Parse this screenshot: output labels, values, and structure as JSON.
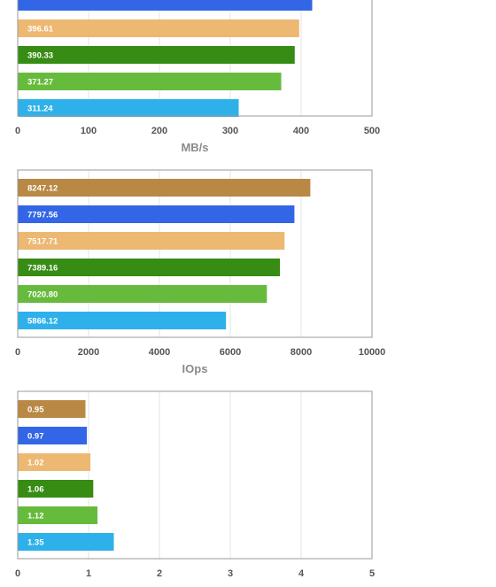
{
  "chart_data": [
    {
      "type": "bar",
      "orientation": "horizontal",
      "xlabel": "MB/s",
      "xlim": [
        0,
        500
      ],
      "xticks": [
        "0",
        "100",
        "200",
        "300",
        "400",
        "500"
      ],
      "grid": true,
      "bars": [
        {
          "value": 415,
          "label": "",
          "color": "#3366e6",
          "partial": true
        },
        {
          "value": 396.61,
          "label": "396.61",
          "color": "#edb872"
        },
        {
          "value": 390.33,
          "label": "390.33",
          "color": "#378c14"
        },
        {
          "value": 371.27,
          "label": "371.27",
          "color": "#66bb3d"
        },
        {
          "value": 311.24,
          "label": "311.24",
          "color": "#2eb1ea"
        }
      ]
    },
    {
      "type": "bar",
      "orientation": "horizontal",
      "xlabel": "IOps",
      "xlim": [
        0,
        10000
      ],
      "xticks": [
        "0",
        "2000",
        "4000",
        "6000",
        "8000",
        "10000"
      ],
      "grid": true,
      "bars": [
        {
          "value": 8247.12,
          "label": "8247.12",
          "color": "#b98844"
        },
        {
          "value": 7797.56,
          "label": "7797.56",
          "color": "#3366e6"
        },
        {
          "value": 7517.71,
          "label": "7517.71",
          "color": "#edb872"
        },
        {
          "value": 7389.16,
          "label": "7389.16",
          "color": "#378c14"
        },
        {
          "value": 7020.8,
          "label": "7020.80",
          "color": "#66bb3d"
        },
        {
          "value": 5866.12,
          "label": "5866.12",
          "color": "#2eb1ea"
        }
      ]
    },
    {
      "type": "bar",
      "orientation": "horizontal",
      "xlabel": "",
      "xlim": [
        0,
        5
      ],
      "xticks": [
        "0",
        "1",
        "2",
        "3",
        "4",
        "5"
      ],
      "grid": true,
      "bars": [
        {
          "value": 0.95,
          "label": "0.95",
          "color": "#b98844"
        },
        {
          "value": 0.97,
          "label": "0.97",
          "color": "#3366e6"
        },
        {
          "value": 1.02,
          "label": "1.02",
          "color": "#edb872"
        },
        {
          "value": 1.06,
          "label": "1.06",
          "color": "#378c14"
        },
        {
          "value": 1.12,
          "label": "1.12",
          "color": "#66bb3d"
        },
        {
          "value": 1.35,
          "label": "1.35",
          "color": "#2eb1ea"
        }
      ]
    }
  ]
}
